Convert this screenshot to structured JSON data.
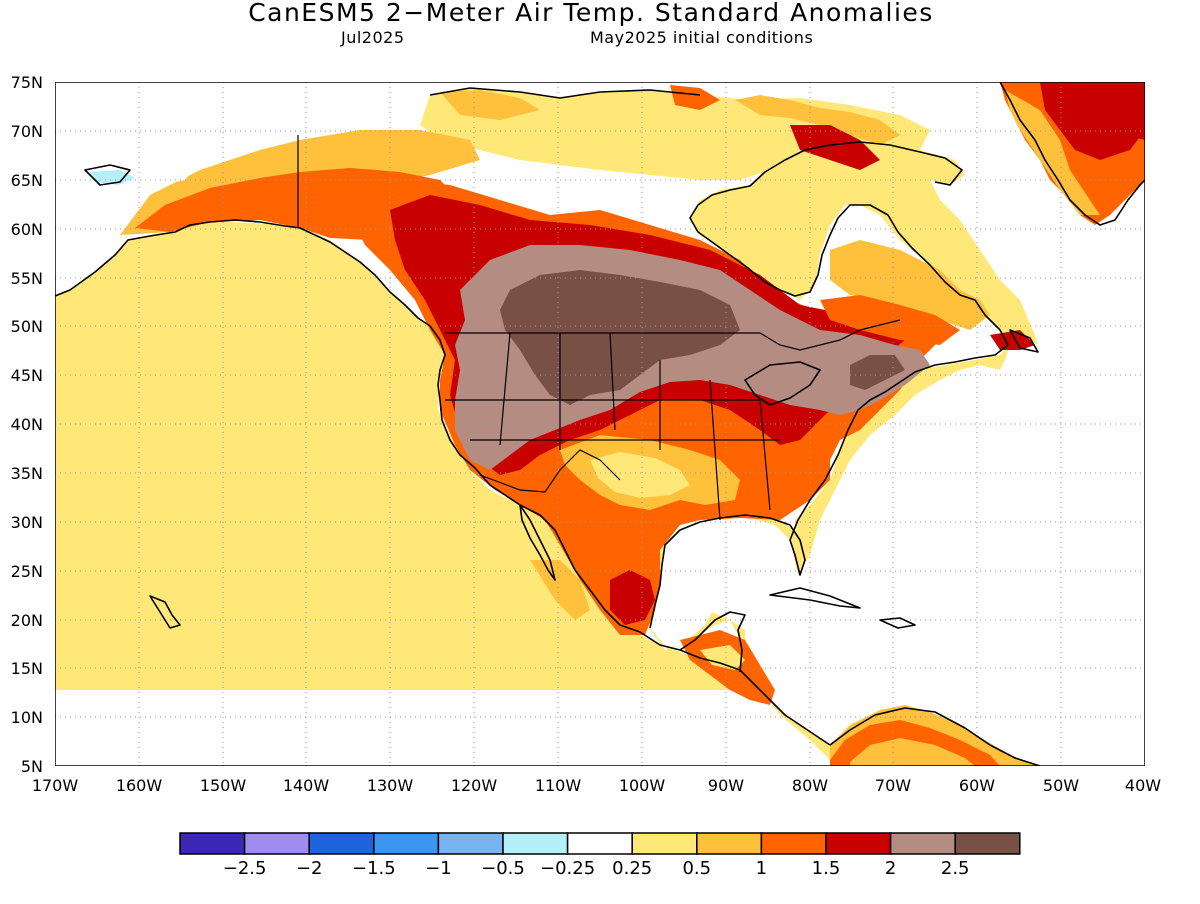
{
  "title": "CanESM5 2−Meter Air Temp. Standard Anomalies",
  "subtitle_left": "Jul2025",
  "subtitle_right": "May2025 initial conditions",
  "lat_ticks": [
    "75N",
    "70N",
    "65N",
    "60N",
    "55N",
    "50N",
    "45N",
    "40N",
    "35N",
    "30N",
    "25N",
    "20N",
    "15N",
    "10N",
    "5N"
  ],
  "lon_ticks": [
    "170W",
    "160W",
    "150W",
    "140W",
    "130W",
    "120W",
    "110W",
    "100W",
    "90W",
    "80W",
    "70W",
    "60W",
    "50W",
    "40W"
  ],
  "colorbar": {
    "colors": [
      "#3c28b4",
      "#a08cf0",
      "#1e64dc",
      "#3c96f0",
      "#78b4f0",
      "#b4f0fa",
      "#ffffff",
      "#ffe878",
      "#ffc03c",
      "#ff6400",
      "#c80000",
      "#b48c82",
      "#785046"
    ],
    "labels": [
      "−2.5",
      "−2",
      "−1.5",
      "−1",
      "−0.5",
      "−0.25",
      "0.25",
      "0.5",
      "1",
      "1.5",
      "2",
      "2.5"
    ]
  },
  "colors": {
    "ocean": "#ffffff",
    "coast": "#000000",
    "grid": "#999999"
  }
}
